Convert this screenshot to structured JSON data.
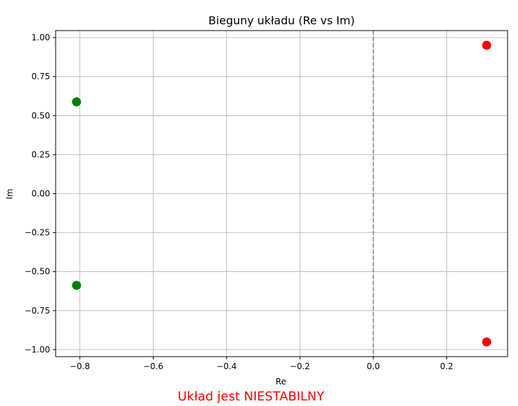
{
  "chart_data": {
    "type": "scatter",
    "title": "Bieguny układu (Re vs Im)",
    "xlabel": "Re",
    "ylabel": "Im",
    "xlim": [
      -0.866,
      0.366
    ],
    "ylim": [
      -1.045,
      1.045
    ],
    "x_ticks": [
      -0.8,
      -0.6,
      -0.4,
      -0.2,
      0.0,
      0.2
    ],
    "x_tick_labels": [
      "−0.8",
      "−0.6",
      "−0.4",
      "−0.2",
      "0.0",
      "0.2"
    ],
    "y_ticks": [
      1.0,
      0.75,
      0.5,
      0.25,
      0.0,
      -0.25,
      -0.5,
      -0.75,
      -1.0
    ],
    "y_tick_labels": [
      "1.00",
      "0.75",
      "0.50",
      "0.25",
      "0.00",
      "−0.25",
      "−0.50",
      "−0.75",
      "−1.00"
    ],
    "grid": true,
    "reference_line": {
      "x": 0,
      "style": "dashed",
      "color": "#808080"
    },
    "points": [
      {
        "x": -0.809,
        "y": 0.588,
        "color": "#008000"
      },
      {
        "x": -0.809,
        "y": -0.588,
        "color": "#008000"
      },
      {
        "x": 0.309,
        "y": 0.951,
        "color": "#ff0000"
      },
      {
        "x": 0.309,
        "y": -0.951,
        "color": "#ff0000"
      }
    ]
  },
  "status": {
    "text": "Układ jest NIESTABILNY",
    "color": "#ff0000"
  }
}
